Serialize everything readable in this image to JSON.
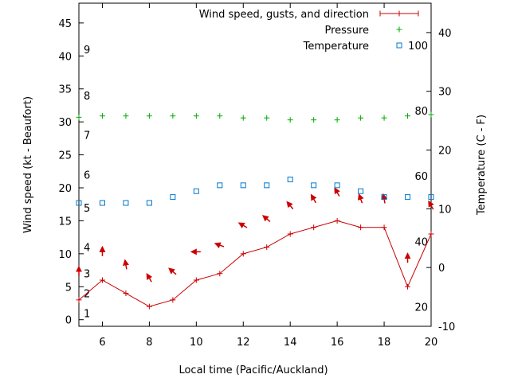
{
  "chart_data": {
    "type": "line",
    "title": "",
    "xlabel": "Local time (Pacific/Auckland)",
    "ylabel": "Wind speed (kt - Beaufort)",
    "y2label": "Temperature (C - F)",
    "xlim": [
      5,
      20
    ],
    "ylim": [
      -1,
      48
    ],
    "y2lim": [
      -10,
      45
    ],
    "xticks": [
      6,
      8,
      10,
      12,
      14,
      16,
      18,
      20
    ],
    "yticks": [
      0,
      5,
      10,
      15,
      20,
      25,
      30,
      35,
      40,
      45
    ],
    "y2ticks": [
      -10,
      0,
      10,
      20,
      30,
      40
    ],
    "beaufort_labels": [
      {
        "label": "1",
        "kt": 1
      },
      {
        "label": "2",
        "kt": 4
      },
      {
        "label": "3",
        "kt": 7
      },
      {
        "label": "4",
        "kt": 11
      },
      {
        "label": "5",
        "kt": 17
      },
      {
        "label": "6",
        "kt": 22
      },
      {
        "label": "7",
        "kt": 28
      },
      {
        "label": "8",
        "kt": 34
      },
      {
        "label": "9",
        "kt": 41
      }
    ],
    "fahrenheit_labels": [
      {
        "label": "20",
        "c": -6.7
      },
      {
        "label": "40",
        "c": 4.4
      },
      {
        "label": "60",
        "c": 15.6
      },
      {
        "label": "80",
        "c": 26.7
      },
      {
        "label": "100",
        "c": 37.8
      }
    ],
    "legend_position": "top-right",
    "grid": false,
    "series": [
      {
        "name": "Wind speed, gusts, and direction",
        "color": "#cc0000",
        "axis": "y",
        "x": [
          5,
          6,
          7,
          8,
          9,
          10,
          11,
          12,
          13,
          14,
          15,
          16,
          17,
          18,
          19,
          20
        ],
        "values": [
          3,
          6,
          4,
          2,
          3,
          6,
          7,
          10,
          11,
          13,
          14,
          15,
          14,
          14,
          5,
          13
        ],
        "arrow_direction_deg": [
          0,
          0,
          -10,
          -30,
          -50,
          -90,
          -70,
          -60,
          -50,
          -40,
          -30,
          -30,
          -20,
          -10,
          0,
          -30
        ]
      },
      {
        "name": "Pressure",
        "color": "#00aa00",
        "axis": "y",
        "x": [
          5,
          6,
          7,
          8,
          9,
          10,
          11,
          12,
          13,
          14,
          15,
          16,
          17,
          18,
          19,
          20
        ],
        "values": [
          30.7,
          30.9,
          30.9,
          30.9,
          30.9,
          30.9,
          30.9,
          30.6,
          30.6,
          30.3,
          30.3,
          30.3,
          30.6,
          30.6,
          30.9,
          31.1
        ]
      },
      {
        "name": "Temperature",
        "color": "#0077cc",
        "axis": "y2",
        "x": [
          5,
          6,
          7,
          8,
          9,
          10,
          11,
          12,
          13,
          14,
          15,
          16,
          17,
          18,
          19,
          20
        ],
        "values": [
          11,
          11,
          11,
          11,
          12,
          13,
          14,
          14,
          14,
          15,
          14,
          14,
          13,
          12,
          12,
          12
        ]
      }
    ]
  }
}
